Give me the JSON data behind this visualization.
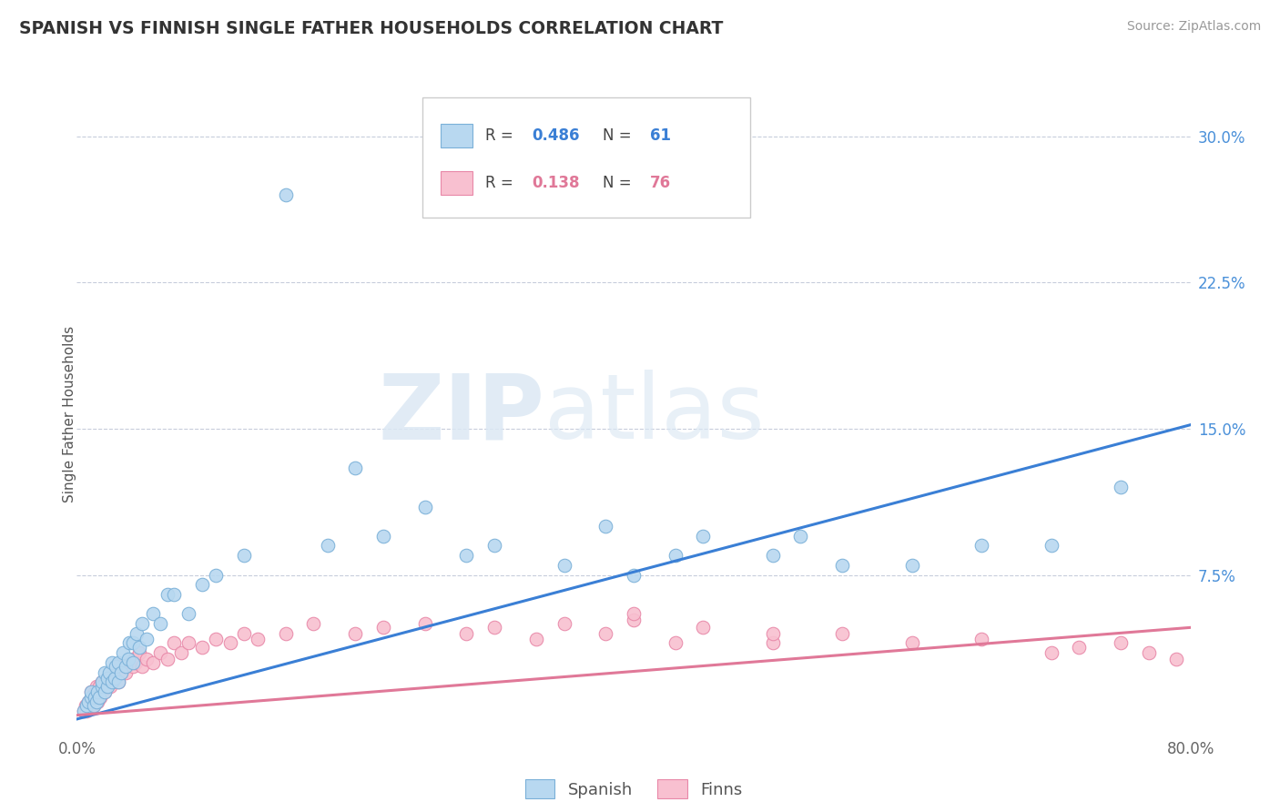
{
  "title": "SPANISH VS FINNISH SINGLE FATHER HOUSEHOLDS CORRELATION CHART",
  "source": "Source: ZipAtlas.com",
  "ylabel": "Single Father Households",
  "xlim": [
    0.0,
    0.8
  ],
  "ylim": [
    -0.005,
    0.32
  ],
  "xticks": [
    0.0,
    0.1,
    0.2,
    0.3,
    0.4,
    0.5,
    0.6,
    0.7,
    0.8
  ],
  "xticklabels": [
    "0.0%",
    "",
    "",
    "",
    "",
    "",
    "",
    "",
    "80.0%"
  ],
  "yticks_right": [
    0.0,
    0.075,
    0.15,
    0.225,
    0.3
  ],
  "yticklabels_right": [
    "",
    "7.5%",
    "15.0%",
    "22.5%",
    "30.0%"
  ],
  "spanish_color": "#b8d8f0",
  "spanish_edge": "#7ab0d8",
  "finns_color": "#f8c0d0",
  "finns_edge": "#e888a8",
  "spanish_R": 0.486,
  "spanish_N": 61,
  "finns_R": 0.138,
  "finns_N": 76,
  "regression_blue": "#3a7fd5",
  "regression_pink": "#e07898",
  "watermark_zip": "ZIP",
  "watermark_atlas": "atlas",
  "legend_blue": "#3a7fd5",
  "legend_pink": "#e07898",
  "sp_line_x0": 0.0,
  "sp_line_y0": 0.001,
  "sp_line_x1": 0.8,
  "sp_line_y1": 0.152,
  "fi_line_x0": 0.0,
  "fi_line_y0": 0.003,
  "fi_line_x1": 0.8,
  "fi_line_y1": 0.048,
  "spanish_x": [
    0.005,
    0.007,
    0.008,
    0.01,
    0.01,
    0.012,
    0.013,
    0.014,
    0.015,
    0.016,
    0.018,
    0.018,
    0.02,
    0.02,
    0.022,
    0.022,
    0.023,
    0.025,
    0.025,
    0.027,
    0.028,
    0.03,
    0.03,
    0.032,
    0.033,
    0.035,
    0.037,
    0.038,
    0.04,
    0.04,
    0.043,
    0.045,
    0.047,
    0.05,
    0.055,
    0.06,
    0.065,
    0.07,
    0.08,
    0.09,
    0.1,
    0.12,
    0.15,
    0.18,
    0.2,
    0.22,
    0.25,
    0.28,
    0.3,
    0.35,
    0.38,
    0.4,
    0.43,
    0.45,
    0.5,
    0.52,
    0.55,
    0.6,
    0.65,
    0.7,
    0.75
  ],
  "spanish_y": [
    0.005,
    0.008,
    0.01,
    0.012,
    0.015,
    0.008,
    0.012,
    0.01,
    0.015,
    0.012,
    0.018,
    0.02,
    0.015,
    0.025,
    0.018,
    0.022,
    0.025,
    0.02,
    0.03,
    0.022,
    0.028,
    0.02,
    0.03,
    0.025,
    0.035,
    0.028,
    0.032,
    0.04,
    0.03,
    0.04,
    0.045,
    0.038,
    0.05,
    0.042,
    0.055,
    0.05,
    0.065,
    0.065,
    0.055,
    0.07,
    0.075,
    0.085,
    0.27,
    0.09,
    0.13,
    0.095,
    0.11,
    0.085,
    0.09,
    0.08,
    0.1,
    0.075,
    0.085,
    0.095,
    0.085,
    0.095,
    0.08,
    0.08,
    0.09,
    0.09,
    0.12
  ],
  "finns_x": [
    0.005,
    0.006,
    0.007,
    0.008,
    0.009,
    0.01,
    0.01,
    0.011,
    0.012,
    0.013,
    0.013,
    0.014,
    0.015,
    0.015,
    0.016,
    0.017,
    0.018,
    0.018,
    0.019,
    0.02,
    0.02,
    0.021,
    0.022,
    0.023,
    0.024,
    0.025,
    0.025,
    0.027,
    0.028,
    0.03,
    0.03,
    0.032,
    0.033,
    0.035,
    0.037,
    0.04,
    0.04,
    0.042,
    0.045,
    0.047,
    0.05,
    0.055,
    0.06,
    0.065,
    0.07,
    0.075,
    0.08,
    0.09,
    0.1,
    0.11,
    0.12,
    0.13,
    0.15,
    0.17,
    0.2,
    0.22,
    0.25,
    0.28,
    0.3,
    0.33,
    0.35,
    0.38,
    0.4,
    0.43,
    0.45,
    0.5,
    0.55,
    0.6,
    0.65,
    0.7,
    0.72,
    0.75,
    0.77,
    0.79,
    0.4,
    0.5
  ],
  "finns_y": [
    0.005,
    0.008,
    0.005,
    0.01,
    0.008,
    0.01,
    0.015,
    0.012,
    0.008,
    0.015,
    0.012,
    0.018,
    0.01,
    0.015,
    0.018,
    0.012,
    0.02,
    0.015,
    0.018,
    0.015,
    0.02,
    0.018,
    0.022,
    0.02,
    0.018,
    0.02,
    0.025,
    0.022,
    0.025,
    0.02,
    0.028,
    0.025,
    0.028,
    0.025,
    0.03,
    0.028,
    0.032,
    0.03,
    0.035,
    0.028,
    0.032,
    0.03,
    0.035,
    0.032,
    0.04,
    0.035,
    0.04,
    0.038,
    0.042,
    0.04,
    0.045,
    0.042,
    0.045,
    0.05,
    0.045,
    0.048,
    0.05,
    0.045,
    0.048,
    0.042,
    0.05,
    0.045,
    0.052,
    0.04,
    0.048,
    0.04,
    0.045,
    0.04,
    0.042,
    0.035,
    0.038,
    0.04,
    0.035,
    0.032,
    0.055,
    0.045
  ]
}
